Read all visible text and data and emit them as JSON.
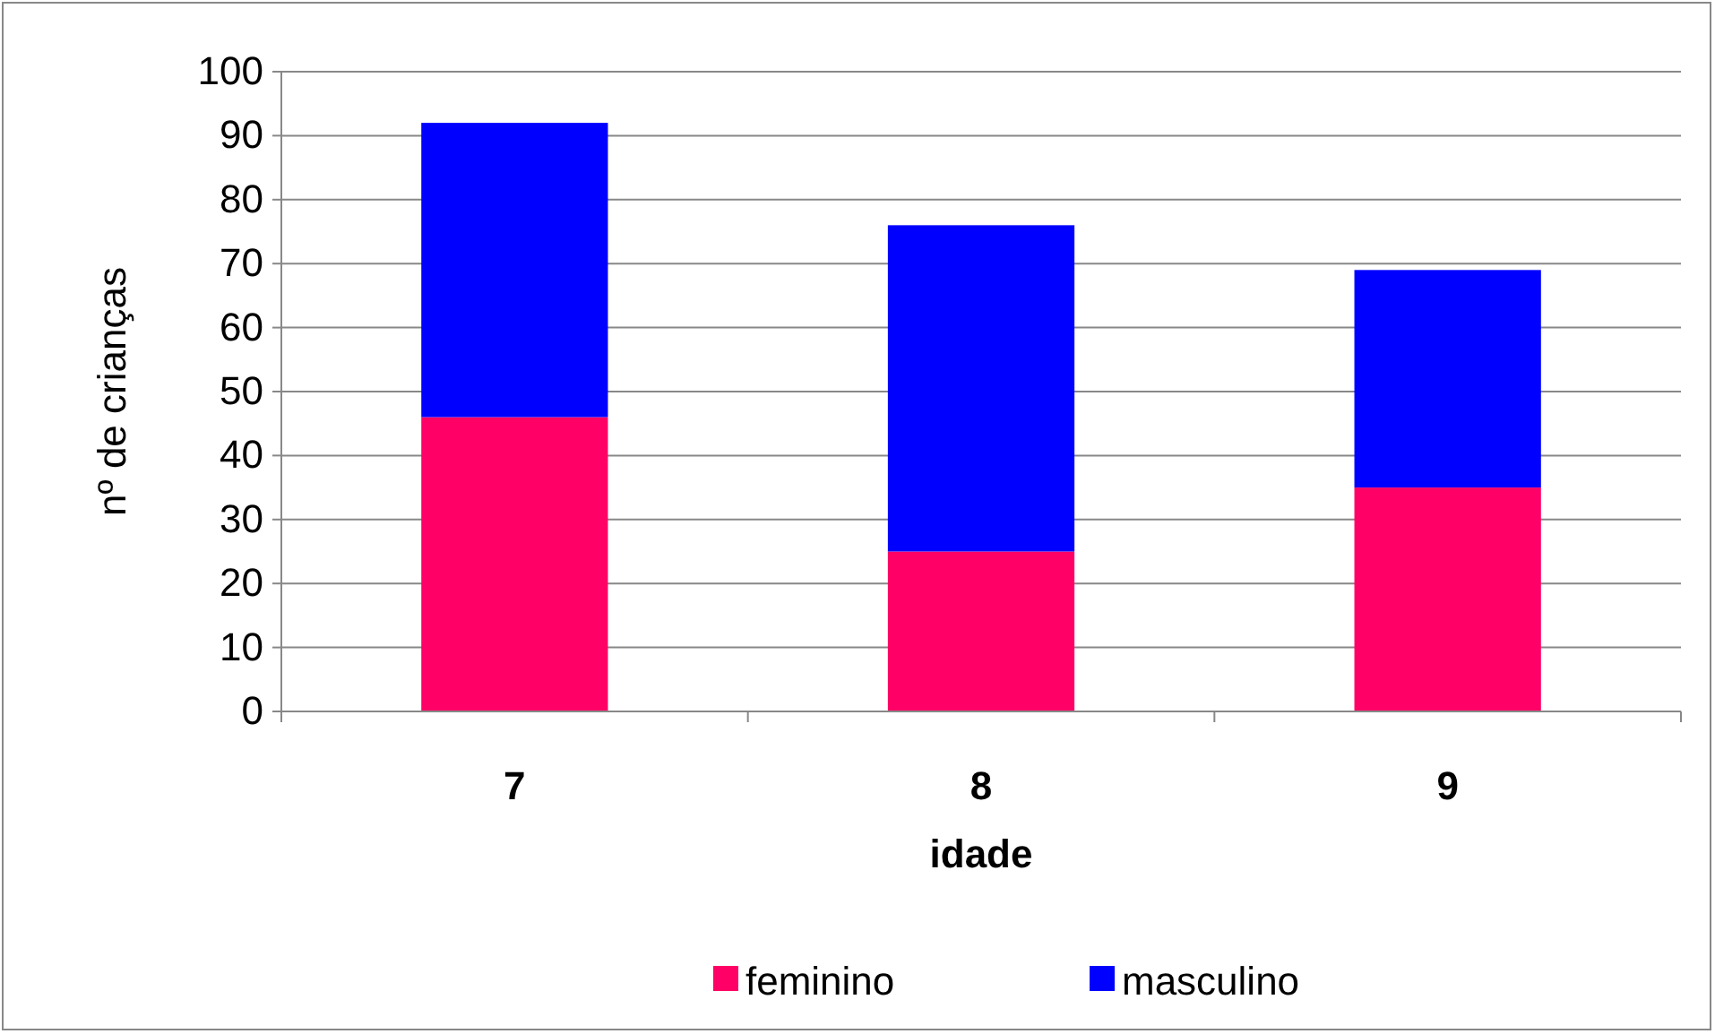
{
  "chart_data": {
    "type": "bar",
    "stacked": true,
    "xlabel": "idade",
    "ylabel": "nº de crianças",
    "categories": [
      "7",
      "8",
      "9"
    ],
    "series": [
      {
        "name": "feminino",
        "color": "#ff0066",
        "values": [
          46,
          25,
          35
        ]
      },
      {
        "name": "masculino",
        "color": "#0000ff",
        "values": [
          46,
          51,
          34
        ]
      }
    ],
    "ylim": [
      0,
      100
    ],
    "yticks": [
      0,
      10,
      20,
      30,
      40,
      50,
      60,
      70,
      80,
      90,
      100
    ],
    "grid": "y",
    "legend": "bottom"
  }
}
